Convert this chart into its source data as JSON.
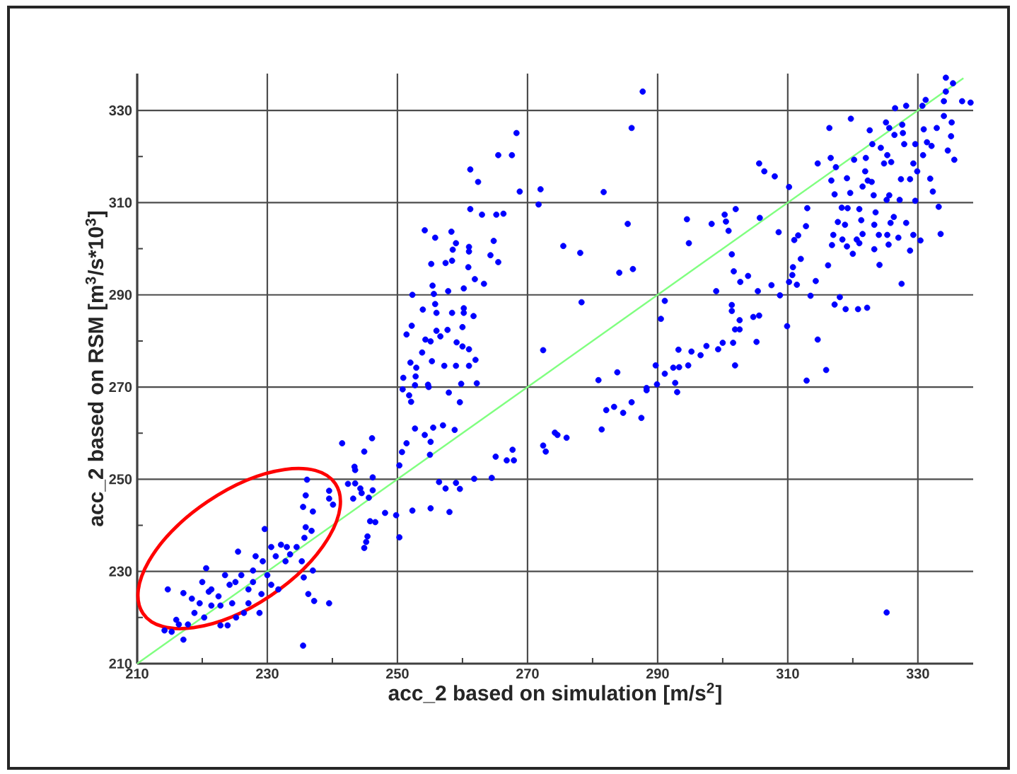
{
  "chart_data": {
    "type": "scatter",
    "xlabel": "acc_2 based on simulation [m/s$^{2}$]",
    "ylabel": "acc_2 based on RSM [m$^{3}$/s*10$^{3}$]",
    "xlim": [
      210,
      338.5
    ],
    "ylim": [
      210,
      338
    ],
    "xticks": [
      210,
      230,
      250,
      270,
      290,
      310,
      330
    ],
    "yticks": [
      210,
      230,
      250,
      270,
      290,
      310,
      330
    ],
    "grid": true,
    "series": [
      {
        "marker": "circle",
        "color": "#0000ff",
        "x": [
          268.3,
          265.5,
          267.6,
          261.2,
          262.4,
          268.8,
          272,
          271.7,
          261.2,
          263.0,
          265.2,
          266.3,
          254.2,
          255.8,
          258.3,
          259.0,
          258.5,
          261.0,
          261.0,
          264.8,
          264.3,
          265.5,
          255.2,
          257.4,
          258.4,
          260.9,
          261.9,
          263.3,
          255.4,
          257.8,
          260.2,
          252.3,
          255.6,
          255.8,
          253.9,
          256.0,
          258.4,
          260.2,
          260.2,
          261.7,
          252.2,
          251.4,
          256.0,
          257.7,
          260.0,
          254.3,
          255.1,
          256.6,
          259.1,
          260.0,
          261.0,
          253.8,
          252.0,
          252.9,
          255.3,
          257.2,
          259.0,
          261.0,
          262.0,
          250.9,
          252.8,
          254.7,
          259.8,
          262.2,
          272.4,
          275.5,
          287.7,
          286.0,
          281.7,
          278.1,
          285.4,
          284.1,
          286.2,
          278.3,
          294.5,
          298.3,
          300.3,
          300.5,
          302.0,
          300.9,
          305.7,
          294.8,
          301.4,
          308.6,
          310.2,
          305.6,
          306.4,
          308.0,
          301.7,
          303.9,
          302.7,
          299.0,
          305.4,
          307.5,
          308.8,
          310.8,
          310.7,
          310.2,
          311.4,
          312.0,
          311.0,
          311.6,
          312.8,
          313.0,
          314.3,
          313.5,
          316.2,
          291.1,
          290.5,
          301.4,
          301.4,
          302.6,
          301.9,
          302.6,
          301.6,
          304.7,
          305.6,
          305.2,
          301.9,
          309.9,
          314.6,
          315.9,
          312.9,
          317.2,
          318.0,
          318.9,
          320.8,
          322.2,
          327.5,
          324.1,
          328.8,
          297.5,
          299.3,
          300.0,
          296.6,
          295.2,
          293.2,
          294.7,
          292.4,
          293.3,
          289.7,
          291.1,
          292.7,
          288.3,
          289.9,
          280.9,
          283.8,
          334.3,
          335.4,
          334.3,
          331.2,
          334.0,
          336.8,
          338.1,
          328.2,
          326.5,
          330.7,
          334.0,
          319.7,
          316.4,
          325.1,
          325.6,
          327.6,
          327.7,
          322.6,
          330.9,
          332.9,
          335.2,
          335.1,
          326.4,
          323.0,
          324.3,
          327.9,
          329.6,
          331.4,
          332.1,
          330.8,
          334.6,
          335.6,
          316.6,
          314.6,
          317.4,
          320.2,
          322.0,
          325.3,
          325.9,
          324.8,
          329.3,
          329.9,
          321.9,
          319.1,
          316.7,
          322.3,
          322.9,
          321.5,
          327.4,
          328.8,
          331.9,
          332.3,
          317.2,
          319.6,
          323.2,
          325.6,
          327.2,
          325.2,
          329.6,
          333.2,
          318.3,
          319.2,
          321.0,
          323.5,
          326.3,
          317.7,
          318.8,
          321.3,
          323.3,
          325.8,
          328.2,
          317.0,
          318.4,
          320.6,
          321.5,
          324.0,
          325.3,
          327.0,
          329.3,
          330.4,
          333.5,
          316.8,
          319.1,
          321.0,
          323.3,
          325.5,
          320.0,
          250.8,
          252.7,
          254.8,
          257.9,
          259.6,
          251.8,
          252.1,
          252.7,
          255.5,
          257.0,
          258.8,
          254.2,
          255.1,
          255.0,
          251.4,
          250.7,
          250.3,
          241.5,
          246.1,
          244.9,
          243.4,
          243.5,
          242.4,
          243.5,
          246.2,
          244.3,
          244.5,
          243.2,
          245.6,
          246.2,
          239.5,
          236.1,
          239.5,
          235.9,
          235.5,
          237.0,
          240.1,
          245.8,
          246.6,
          248.1,
          249.8,
          252.3,
          255.1,
          256.4,
          258.0,
          257.4,
          259.0,
          259.6,
          261.8,
          264.5,
          265.1,
          266.8,
          267.9,
          267.7,
          250.3,
          245.4,
          245.2,
          244.9,
          272.4,
          272.8,
          274.2,
          239.5,
          235.5,
          235.6,
          237.0,
          237.2,
          236.3,
          235.3,
          235.9,
          236.8,
          235.7,
          234.5,
          229.6,
          232.1,
          233.0,
          214.7,
          214.2,
          215.3,
          217.1,
          216.0,
          217.8,
          218.8,
          217.1,
          220.0,
          220.6,
          221.4,
          219.6,
          222.8,
          223.9,
          222.5,
          223.5,
          225.5,
          225.1,
          224.6,
          226.4,
          227.1,
          227.8,
          228.2,
          229.3,
          230.0,
          229.1,
          230.6,
          231.7,
          231.3,
          230.6,
          224.2,
          221.0,
          218.4,
          220.3,
          221.4,
          226.0,
          227.8,
          222.8,
          225.2,
          216.4,
          232.8,
          233.5,
          227.1,
          228.8,
          325.2,
          281.4,
          282.1,
          283.3,
          284.7,
          286.0,
          287.5,
          288.3,
          293.0,
          274.6,
          276.0
        ],
        "values": [
          325.1,
          320.3,
          320.3,
          317.2,
          314.5,
          312.4,
          312.9,
          309.6,
          308.6,
          307.4,
          307.4,
          307.6,
          304.0,
          302.4,
          303.7,
          301.2,
          299.8,
          300.4,
          299.4,
          301.7,
          298.6,
          297.1,
          296.7,
          296.9,
          297.4,
          296.0,
          293.4,
          292.4,
          292.0,
          290.8,
          291.4,
          290.0,
          290.2,
          288.0,
          286.8,
          286.1,
          286.1,
          287.1,
          286.1,
          285.4,
          283.3,
          281.4,
          282.2,
          282.4,
          283.0,
          280.3,
          279.9,
          281.0,
          279.7,
          278.8,
          278.2,
          277.5,
          275.3,
          274.2,
          275.6,
          274.6,
          274.6,
          274.6,
          275.9,
          272.0,
          272.3,
          270.5,
          270.7,
          270.8,
          278.0,
          300.6,
          334.1,
          326.2,
          312.3,
          299.1,
          305.4,
          294.8,
          295.6,
          288.4,
          306.4,
          305.4,
          307.4,
          305.9,
          308.6,
          303.9,
          306.7,
          301.2,
          298.8,
          303.6,
          313.4,
          318.5,
          316.8,
          315.7,
          295.1,
          294.1,
          292.8,
          290.8,
          290.8,
          292.1,
          289.9,
          296.0,
          294.3,
          292.8,
          292.2,
          297.8,
          301.9,
          302.9,
          304.9,
          308.8,
          293.0,
          289.8,
          296.4,
          288.7,
          284.8,
          287.8,
          286.5,
          284.5,
          282.5,
          282.5,
          279.6,
          285.2,
          285.5,
          279.8,
          274.7,
          283.2,
          280.3,
          273.7,
          271.4,
          287.9,
          289.5,
          286.9,
          286.9,
          287.2,
          292.4,
          296.5,
          299.6,
          278.9,
          278.2,
          279.6,
          276.9,
          277.7,
          278.1,
          274.7,
          274.2,
          274.3,
          274.7,
          272.9,
          270.9,
          269.8,
          270.6,
          271.5,
          273.2,
          337.1,
          335.9,
          334.1,
          332.3,
          332.0,
          332.0,
          331.7,
          331.0,
          330.5,
          331.0,
          328.8,
          328.2,
          326.2,
          327.4,
          326.2,
          326.9,
          325.1,
          325.7,
          325.9,
          326.2,
          327.4,
          324.4,
          324.7,
          322.7,
          321.9,
          322.7,
          322.7,
          323.1,
          322.3,
          320.3,
          321.3,
          319.3,
          319.7,
          318.5,
          317.7,
          319.3,
          319.7,
          320.3,
          318.8,
          318.5,
          318.5,
          316.8,
          316.8,
          315.3,
          314.8,
          314.8,
          314.5,
          313.5,
          315.1,
          315.1,
          315.2,
          312.4,
          311.8,
          312.1,
          311.6,
          311.6,
          310.6,
          310.6,
          310.4,
          309.1,
          308.9,
          308.8,
          308.6,
          307.9,
          306.9,
          305.8,
          305.2,
          306.2,
          305.2,
          305.6,
          305.6,
          303.0,
          302.0,
          302.0,
          303.2,
          303.0,
          303.0,
          302.4,
          303.0,
          301.8,
          303.2,
          300.8,
          300.5,
          301.2,
          299.9,
          300.9,
          298.9,
          269.5,
          270.4,
          270.0,
          268.8,
          266.7,
          268.2,
          266.8,
          261.0,
          261.2,
          261.7,
          260.7,
          259.6,
          258.1,
          255.3,
          257.8,
          255.9,
          253.0,
          257.8,
          258.9,
          256.0,
          252.7,
          252.0,
          249.0,
          249.1,
          250.4,
          248.0,
          247.0,
          245.8,
          246.0,
          247.6,
          247.5,
          249.9,
          245.8,
          246.5,
          244.0,
          243.0,
          244.5,
          240.9,
          240.7,
          242.7,
          242.2,
          243.2,
          243.7,
          249.4,
          242.9,
          248.0,
          249.2,
          247.9,
          250.1,
          250.3,
          254.9,
          254.1,
          254.1,
          256.4,
          237.4,
          237.6,
          236.4,
          235.1,
          257.3,
          256.0,
          260.1,
          223.1,
          213.9,
          228.7,
          230.2,
          223.6,
          225.1,
          232.2,
          239.6,
          238.8,
          237.3,
          235.3,
          239.2,
          235.8,
          235.3,
          226.1,
          217.2,
          216.9,
          215.2,
          219.5,
          218.5,
          221.0,
          225.3,
          227.7,
          230.7,
          222.6,
          223.1,
          218.3,
          218.3,
          224.6,
          229.2,
          234.3,
          227.7,
          223.1,
          221.0,
          226.1,
          230.2,
          233.3,
          232.2,
          229.2,
          225.1,
          227.1,
          226.1,
          233.3,
          235.3,
          227.1,
          225.6,
          224.1,
          220.0,
          226.1,
          229.2,
          227.7,
          222.6,
          220.0,
          218.5,
          232.2,
          233.7,
          223.1,
          221.0,
          221.1,
          260.8,
          265.0,
          265.7,
          264.4,
          266.7,
          263.3,
          269.3,
          268.9,
          259.6,
          259.0
        ]
      },
      {
        "type": "line",
        "marker": "none",
        "color": "#80ff80",
        "x": [
          210,
          337
        ],
        "values": [
          210,
          337
        ]
      }
    ]
  }
}
